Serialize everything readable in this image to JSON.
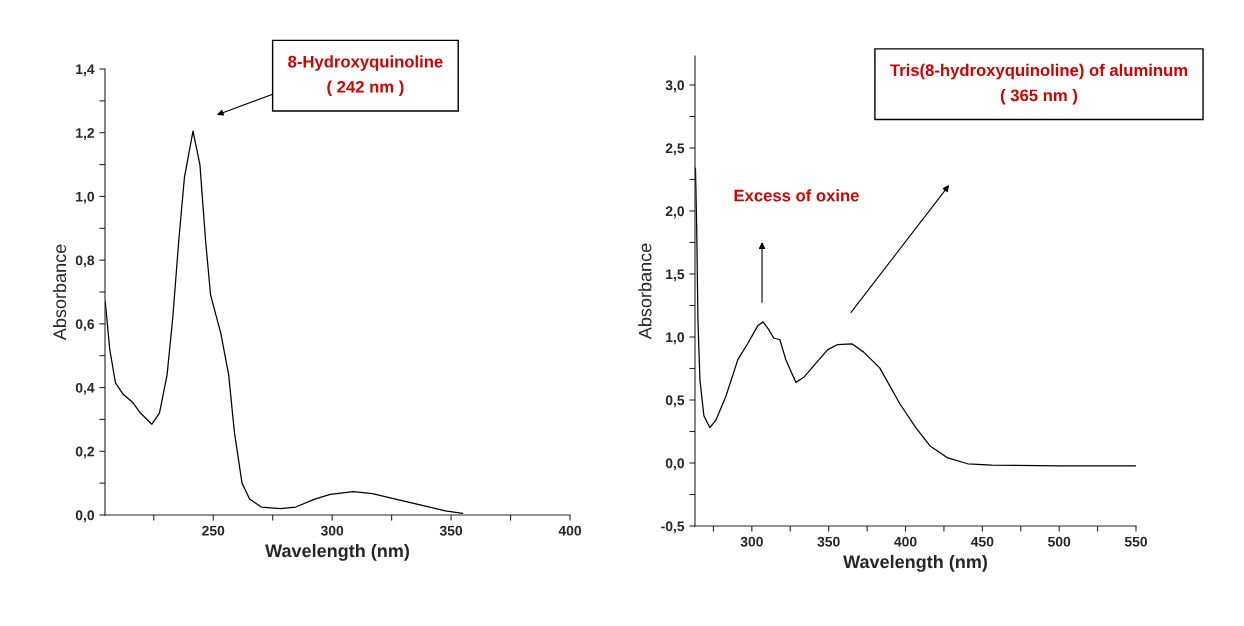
{
  "chart_data": [
    {
      "type": "line",
      "xlabel": "Wavelength (nm)",
      "ylabel": "Absorbance",
      "series": [
        {
          "color": "#000000",
          "x": [
            204.6,
            206.5,
            208.9,
            212,
            216,
            219.4,
            224.2,
            227.4,
            230.6,
            233,
            235.5,
            237.9,
            241.5,
            244.4,
            246.8,
            248.9,
            253.2,
            256.5,
            258.9,
            262.1,
            265.3,
            270.2,
            278.2,
            284.7,
            292.7,
            299.2,
            308.9,
            317,
            326.6,
            337.9,
            347.6,
            354.8
          ],
          "values": [
            0.67,
            0.52,
            0.415,
            0.38,
            0.355,
            0.32,
            0.285,
            0.32,
            0.44,
            0.62,
            0.86,
            1.06,
            1.205,
            1.1,
            0.86,
            0.69,
            0.57,
            0.44,
            0.26,
            0.1,
            0.05,
            0.025,
            0.02,
            0.025,
            0.05,
            0.065,
            0.073,
            0.067,
            0.05,
            0.03,
            0.013,
            0.005
          ]
        }
      ],
      "xlim": [
        204.5,
        400
      ],
      "ylim": [
        0,
        1.4
      ],
      "xticks": [
        {
          "value": 225,
          "label": null
        },
        250,
        {
          "value": 275,
          "label": null
        },
        300,
        {
          "value": 325,
          "label": null
        },
        350,
        {
          "value": 375,
          "label": null
        },
        400
      ],
      "yticks": [
        {
          "value": 0,
          "label": "0,0"
        },
        {
          "value": 0.1,
          "label": null
        },
        {
          "value": 0.2,
          "label": "0,2"
        },
        {
          "value": 0.3,
          "label": null
        },
        {
          "value": 0.4,
          "label": "0,4"
        },
        {
          "value": 0.5,
          "label": null
        },
        {
          "value": 0.6,
          "label": "0,6"
        },
        {
          "value": 0.7,
          "label": null
        },
        {
          "value": 0.8,
          "label": "0,8"
        },
        {
          "value": 0.9,
          "label": null
        },
        {
          "value": 1.0,
          "label": "1,0"
        },
        {
          "value": 1.1,
          "label": null
        },
        {
          "value": 1.2,
          "label": "1,2"
        },
        {
          "value": 1.3,
          "label": null
        },
        {
          "value": 1.4,
          "label": "1,4"
        }
      ],
      "annotations": [
        "8-Hydroxyquinoline\n( 242 nm )"
      ]
    },
    {
      "type": "line",
      "xlabel": "Wavelength (nm)",
      "ylabel": "Absorbance",
      "series": [
        {
          "color": "#000000",
          "x": [
            263.3,
            264.1,
            264.9,
            266.2,
            268.8,
            272.7,
            276.6,
            283.1,
            290.9,
            297.4,
            303.9,
            307.3,
            310.9,
            314.3,
            318.2,
            322.1,
            328.6,
            333.8,
            341.6,
            349.4,
            355.9,
            365,
            372.8,
            383.2,
            396.3,
            406.7,
            415.8,
            427.5,
            440.5,
            456.1,
            500.3,
            549.7
          ],
          "values": [
            2.34,
            1.87,
            1.14,
            0.66,
            0.375,
            0.28,
            0.34,
            0.53,
            0.82,
            0.95,
            1.09,
            1.12,
            1.06,
            0.99,
            0.98,
            0.82,
            0.64,
            0.68,
            0.79,
            0.9,
            0.94,
            0.946,
            0.88,
            0.755,
            0.47,
            0.28,
            0.137,
            0.04,
            -0.006,
            -0.016,
            -0.022,
            -0.022
          ]
        }
      ],
      "xlim": [
        263,
        550
      ],
      "ylim": [
        -0.5,
        3.23
      ],
      "xticks": [
        {
          "value": 275,
          "label": null
        },
        300,
        {
          "value": 325,
          "label": null
        },
        350,
        {
          "value": 375,
          "label": null
        },
        400,
        {
          "value": 425,
          "label": null
        },
        450,
        {
          "value": 475,
          "label": null
        },
        500,
        {
          "value": 525,
          "label": null
        },
        550
      ],
      "yticks": [
        {
          "value": -0.5,
          "label": "-0,5"
        },
        {
          "value": -0.25,
          "label": null
        },
        {
          "value": 0,
          "label": "0,0"
        },
        {
          "value": 0.25,
          "label": null
        },
        {
          "value": 0.5,
          "label": "0,5"
        },
        {
          "value": 0.75,
          "label": null
        },
        {
          "value": 1.0,
          "label": "1,0"
        },
        {
          "value": 1.25,
          "label": null
        },
        {
          "value": 1.5,
          "label": "1,5"
        },
        {
          "value": 1.75,
          "label": null
        },
        {
          "value": 2.0,
          "label": "2,0"
        },
        {
          "value": 2.25,
          "label": null
        },
        {
          "value": 2.5,
          "label": "2,5"
        },
        {
          "value": 2.75,
          "label": null
        },
        {
          "value": 3.0,
          "label": "3,0"
        }
      ],
      "annotations": [
        "Excess of oxine",
        "Tris(8-hydroxyquinoline) of aluminum\n( 365 nm )"
      ]
    }
  ]
}
